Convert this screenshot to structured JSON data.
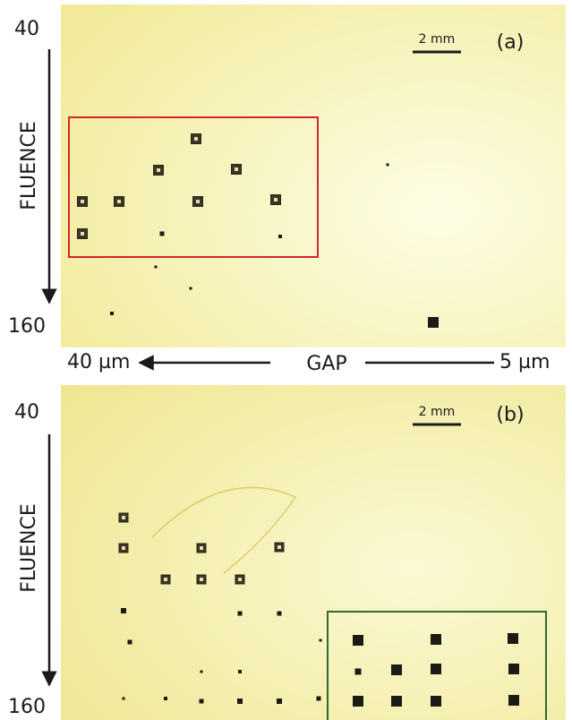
{
  "panels": [
    {
      "fluence_top": "40",
      "fluence_label": "FLUENCE",
      "fluence_bottom": "160",
      "scale_bar": "2 mm",
      "panel_label": "(a)"
    },
    {
      "fluence_top": "40",
      "fluence_label": "FLUENCE",
      "fluence_bottom": "160",
      "scale_bar": "2 mm",
      "panel_label": "(b)"
    }
  ],
  "gap_axis": {
    "left": "40 µm",
    "label": "GAP",
    "right": "5 µm"
  }
}
